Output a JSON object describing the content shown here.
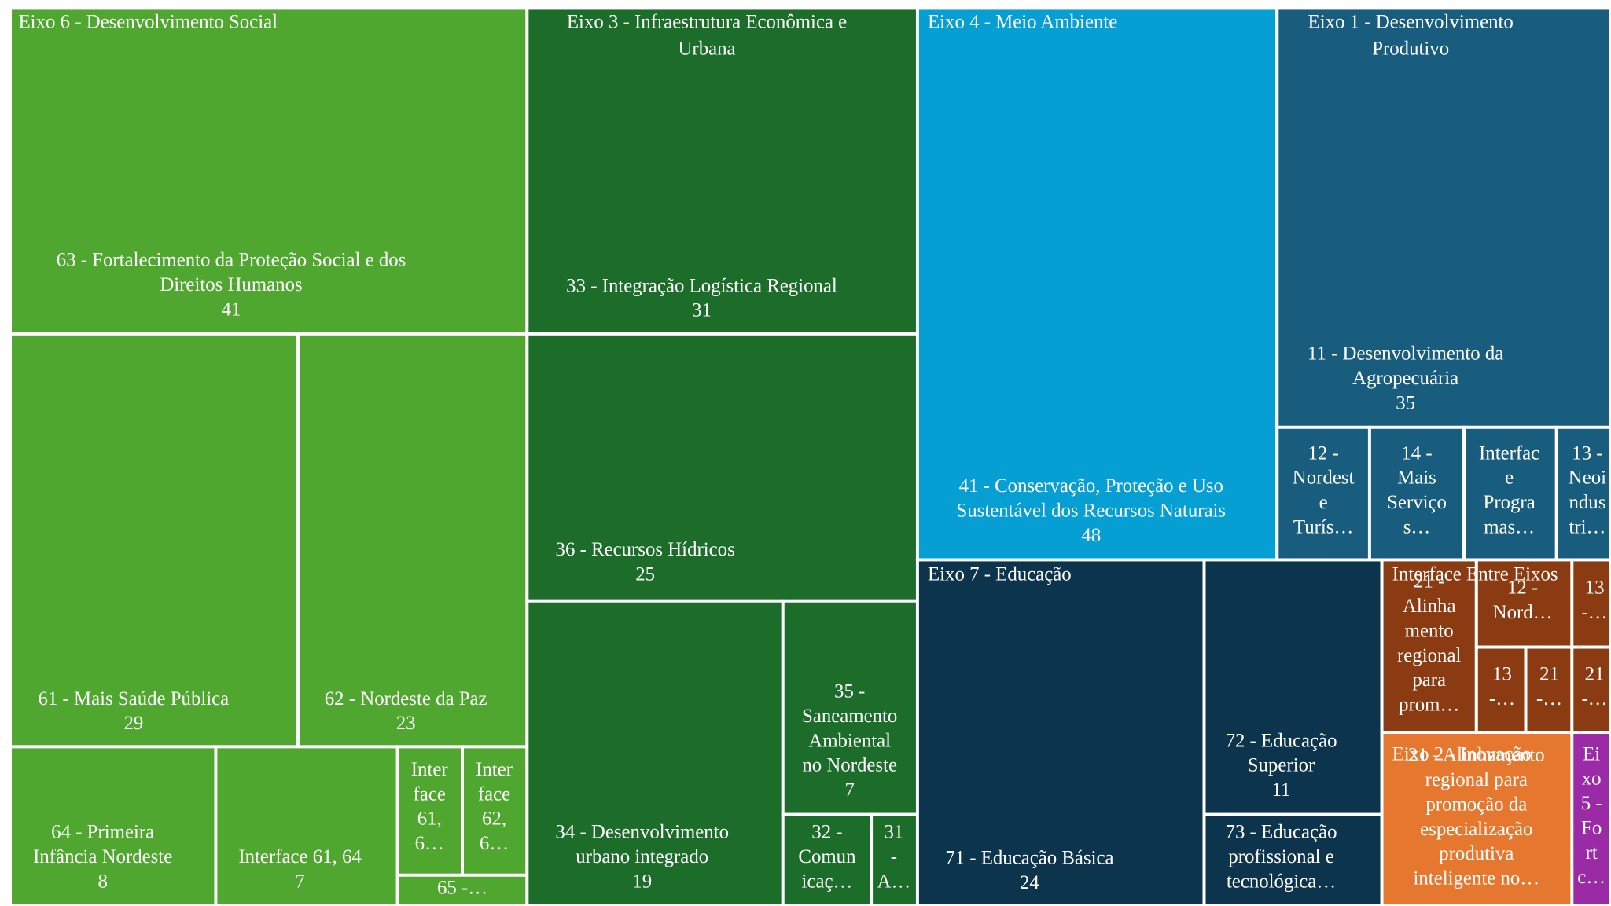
{
  "groups": [
    {
      "title": [
        "Eixo 6 - Desenvolvimento Social"
      ],
      "color": "#4fa72f",
      "tiles": [
        {
          "label": [
            "63 - Fortalecimento da Proteção Social e dos",
            "Direitos Humanos"
          ],
          "value": 41
        },
        {
          "label": [
            "61 - Mais Saúde Pública"
          ],
          "value": 29
        },
        {
          "label": [
            "62 - Nordeste da Paz"
          ],
          "value": 23
        },
        {
          "label": [
            "64 - Primeira",
            "Infância Nordeste"
          ],
          "value": 8
        },
        {
          "label": [
            "Interface 61, 64"
          ],
          "value": 7
        },
        {
          "label": [
            "Inter",
            "face",
            "61,",
            "6…"
          ]
        },
        {
          "label": [
            "Inter",
            "face",
            "62,",
            "6…"
          ]
        },
        {
          "label": [
            "65 -…"
          ]
        }
      ]
    },
    {
      "title": [
        "Eixo 3 - Infraestrutura Econômica e",
        "Urbana"
      ],
      "color": "#1b6d29",
      "tiles": [
        {
          "label": [
            "33 - Integração Logística Regional"
          ],
          "value": 31
        },
        {
          "label": [
            "36 - Recursos Hídricos"
          ],
          "value": 25
        },
        {
          "label": [
            "34 - Desenvolvimento",
            "urbano integrado"
          ],
          "value": 19
        },
        {
          "label": [
            "35 -",
            "Saneamento",
            "Ambiental",
            "no Nordeste"
          ],
          "value": 7
        },
        {
          "label": [
            "32 -",
            "Comun",
            "icaç…"
          ]
        },
        {
          "label": [
            "31",
            "-",
            "A…"
          ]
        }
      ]
    },
    {
      "title": [
        "Eixo 4 - Meio Ambiente"
      ],
      "color": "#069fd4",
      "tiles": [
        {
          "label": [
            "41 - Conservação, Proteção e Uso",
            "Sustentável dos Recursos Naturais"
          ],
          "value": 48
        }
      ]
    },
    {
      "title": [
        "Eixo 1 - Desenvolvimento",
        "Produtivo"
      ],
      "color": "#185d7e",
      "tiles": [
        {
          "label": [
            "11 - Desenvolvimento da",
            "Agropecuária"
          ],
          "value": 35
        },
        {
          "label": [
            "12 -",
            "Nordest",
            "e",
            "Turís…"
          ]
        },
        {
          "label": [
            "14 -",
            "Mais",
            "Serviço",
            "s…"
          ]
        },
        {
          "label": [
            "Interfac",
            "e",
            "Progra",
            "mas…"
          ]
        },
        {
          "label": [
            "13 -",
            "Neoi",
            "ndus",
            "tri…"
          ]
        }
      ]
    },
    {
      "title": [
        "Eixo 7 - Educação"
      ],
      "color": "#0c344d",
      "tiles": [
        {
          "label": [
            "71 - Educação Básica"
          ],
          "value": 24
        },
        {
          "label": [
            "72 - Educação",
            "Superior"
          ],
          "value": 11
        },
        {
          "label": [
            "73 - Educação",
            "profissional e",
            "tecnológica…"
          ]
        }
      ]
    },
    {
      "title": [
        "Interface Entre Eixos"
      ],
      "color": "#8a3b12",
      "tiles": [
        {
          "label": [
            "21 -",
            "Alinha",
            "mento",
            "regional",
            "para",
            "prom…"
          ]
        },
        {
          "label": [
            "12 -",
            "Nord…"
          ]
        },
        {
          "label": [
            "13",
            "-…"
          ]
        },
        {
          "label": [
            "13",
            "-…"
          ]
        },
        {
          "label": [
            "21",
            "-…"
          ]
        },
        {
          "label": [
            "21",
            "-…"
          ]
        }
      ]
    },
    {
      "title": [
        "Eixo 2 - Inovação"
      ],
      "color": "#e6772e",
      "tiles": [
        {
          "label": [
            "21 - Alinhamento",
            "regional para",
            "promoção da",
            "especialização",
            "produtiva",
            "inteligente no…"
          ]
        }
      ]
    },
    {
      "title": [
        "Ei",
        "xo",
        "5 -",
        "Fo",
        "rt",
        "c…"
      ],
      "color": "#9b2aa6",
      "tiles": []
    }
  ]
}
